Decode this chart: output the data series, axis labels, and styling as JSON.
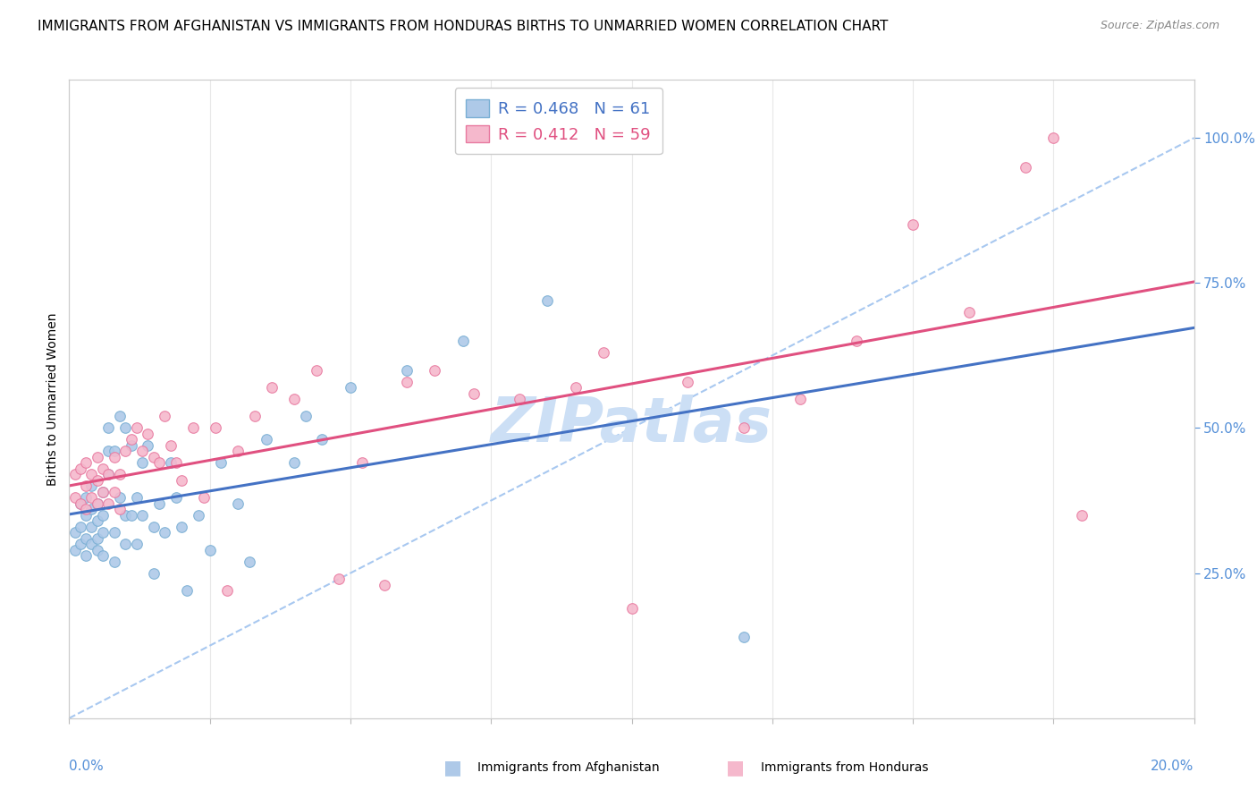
{
  "title": "IMMIGRANTS FROM AFGHANISTAN VS IMMIGRANTS FROM HONDURAS BIRTHS TO UNMARRIED WOMEN CORRELATION CHART",
  "source": "Source: ZipAtlas.com",
  "ylabel": "Births to Unmarried Women",
  "legend_blue_r": "R = 0.468",
  "legend_blue_n": "N = 61",
  "legend_pink_r": "R = 0.412",
  "legend_pink_n": "N = 59",
  "afg_x": [
    0.001,
    0.001,
    0.002,
    0.002,
    0.002,
    0.003,
    0.003,
    0.003,
    0.003,
    0.004,
    0.004,
    0.004,
    0.004,
    0.005,
    0.005,
    0.005,
    0.005,
    0.006,
    0.006,
    0.006,
    0.006,
    0.007,
    0.007,
    0.007,
    0.008,
    0.008,
    0.008,
    0.009,
    0.009,
    0.01,
    0.01,
    0.01,
    0.011,
    0.011,
    0.012,
    0.012,
    0.013,
    0.013,
    0.014,
    0.015,
    0.015,
    0.016,
    0.017,
    0.018,
    0.019,
    0.02,
    0.021,
    0.023,
    0.025,
    0.027,
    0.03,
    0.032,
    0.035,
    0.04,
    0.042,
    0.045,
    0.05,
    0.06,
    0.07,
    0.085,
    0.12
  ],
  "afg_y": [
    0.29,
    0.32,
    0.3,
    0.33,
    0.37,
    0.28,
    0.31,
    0.35,
    0.38,
    0.3,
    0.33,
    0.36,
    0.4,
    0.29,
    0.31,
    0.34,
    0.37,
    0.28,
    0.32,
    0.35,
    0.39,
    0.42,
    0.46,
    0.5,
    0.27,
    0.32,
    0.46,
    0.38,
    0.52,
    0.3,
    0.35,
    0.5,
    0.35,
    0.47,
    0.3,
    0.38,
    0.44,
    0.35,
    0.47,
    0.25,
    0.33,
    0.37,
    0.32,
    0.44,
    0.38,
    0.33,
    0.22,
    0.35,
    0.29,
    0.44,
    0.37,
    0.27,
    0.48,
    0.44,
    0.52,
    0.48,
    0.57,
    0.6,
    0.65,
    0.72,
    0.14
  ],
  "hon_x": [
    0.001,
    0.001,
    0.002,
    0.002,
    0.003,
    0.003,
    0.003,
    0.004,
    0.004,
    0.005,
    0.005,
    0.005,
    0.006,
    0.006,
    0.007,
    0.007,
    0.008,
    0.008,
    0.009,
    0.009,
    0.01,
    0.011,
    0.012,
    0.013,
    0.014,
    0.015,
    0.016,
    0.017,
    0.018,
    0.019,
    0.02,
    0.022,
    0.024,
    0.026,
    0.028,
    0.03,
    0.033,
    0.036,
    0.04,
    0.044,
    0.048,
    0.052,
    0.056,
    0.06,
    0.065,
    0.072,
    0.08,
    0.09,
    0.095,
    0.1,
    0.11,
    0.12,
    0.13,
    0.14,
    0.15,
    0.16,
    0.17,
    0.175,
    0.18
  ],
  "hon_y": [
    0.38,
    0.42,
    0.37,
    0.43,
    0.36,
    0.4,
    0.44,
    0.38,
    0.42,
    0.37,
    0.41,
    0.45,
    0.39,
    0.43,
    0.37,
    0.42,
    0.39,
    0.45,
    0.36,
    0.42,
    0.46,
    0.48,
    0.5,
    0.46,
    0.49,
    0.45,
    0.44,
    0.52,
    0.47,
    0.44,
    0.41,
    0.5,
    0.38,
    0.5,
    0.22,
    0.46,
    0.52,
    0.57,
    0.55,
    0.6,
    0.24,
    0.44,
    0.23,
    0.58,
    0.6,
    0.56,
    0.55,
    0.57,
    0.63,
    0.19,
    0.58,
    0.5,
    0.55,
    0.65,
    0.85,
    0.7,
    0.95,
    1.0,
    0.35
  ],
  "afg_color_face": "#aec9e8",
  "afg_color_edge": "#7aafd4",
  "hon_color_face": "#f5b8cc",
  "hon_color_edge": "#e87aa0",
  "blue_line_color": "#4472c4",
  "pink_line_color": "#e05080",
  "dash_line_color": "#a8c8f0",
  "watermark_color": "#ccdff5",
  "bg_color": "#ffffff",
  "grid_color": "#e8e8e8",
  "right_tick_color": "#5590d8",
  "xlim": [
    0.0,
    0.2
  ],
  "ylim": [
    0.0,
    1.1
  ]
}
